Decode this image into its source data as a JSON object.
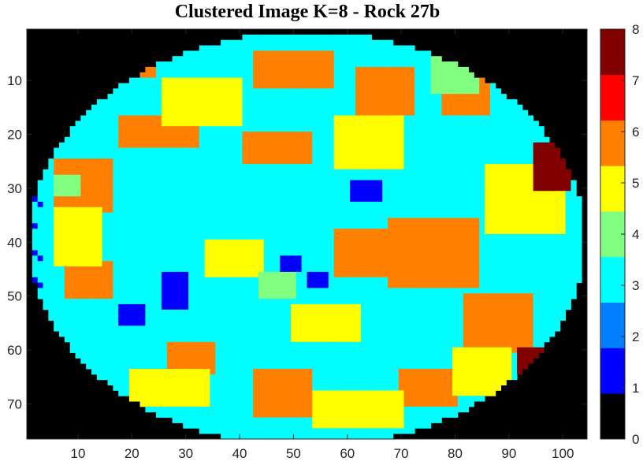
{
  "chart_data": {
    "type": "heatmap",
    "title": "Clustered Image K=8 - Rock 27b",
    "xlabel": "",
    "ylabel": "",
    "xlim": [
      0.5,
      104.5
    ],
    "ylim": [
      0.5,
      76.5
    ],
    "x_ticks": [
      10,
      20,
      30,
      40,
      50,
      60,
      70,
      80,
      90,
      100
    ],
    "y_ticks": [
      10,
      20,
      30,
      40,
      50,
      60,
      70
    ],
    "colorbar": {
      "range": [
        0,
        8
      ],
      "ticks": [
        0,
        1,
        2,
        3,
        4,
        5,
        6,
        7,
        8
      ],
      "colors": [
        "#000000",
        "#0000ff",
        "#0080ff",
        "#00ffff",
        "#80ff80",
        "#ffff00",
        "#ff8000",
        "#ff0000",
        "#800000"
      ]
    },
    "grid": false,
    "image_size": {
      "columns": 104,
      "rows": 76
    },
    "cluster_ellipse": {
      "center_col": 52.5,
      "center_row": 39.5,
      "radius_cols": 51.5,
      "radius_rows": 38.5
    },
    "regions": [
      {
        "cluster": 3,
        "note": "background of rock",
        "col": [
          4,
          103
        ],
        "row": [
          2,
          76
        ]
      },
      {
        "cluster": 6,
        "col": [
          13,
          24
        ],
        "row": [
          5,
          9
        ]
      },
      {
        "cluster": 6,
        "col": [
          18,
          32
        ],
        "row": [
          17,
          22
        ]
      },
      {
        "cluster": 6,
        "col": [
          43,
          57
        ],
        "row": [
          5,
          11
        ]
      },
      {
        "cluster": 6,
        "col": [
          62,
          72
        ],
        "row": [
          8,
          16
        ]
      },
      {
        "cluster": 6,
        "col": [
          78,
          86
        ],
        "row": [
          10,
          16
        ]
      },
      {
        "cluster": 6,
        "col": [
          6,
          16
        ],
        "row": [
          25,
          34
        ]
      },
      {
        "cluster": 6,
        "col": [
          41,
          53
        ],
        "row": [
          20,
          25
        ]
      },
      {
        "cluster": 6,
        "col": [
          68,
          84
        ],
        "row": [
          36,
          48
        ]
      },
      {
        "cluster": 6,
        "col": [
          58,
          68
        ],
        "row": [
          38,
          46
        ]
      },
      {
        "cluster": 6,
        "col": [
          82,
          94
        ],
        "row": [
          50,
          60
        ]
      },
      {
        "cluster": 6,
        "col": [
          8,
          16
        ],
        "row": [
          44,
          50
        ]
      },
      {
        "cluster": 6,
        "col": [
          27,
          35
        ],
        "row": [
          59,
          64
        ]
      },
      {
        "cluster": 6,
        "col": [
          43,
          53
        ],
        "row": [
          64,
          72
        ]
      },
      {
        "cluster": 6,
        "col": [
          70,
          80
        ],
        "row": [
          64,
          70
        ]
      },
      {
        "cluster": 5,
        "col": [
          6,
          14
        ],
        "row": [
          34,
          44
        ]
      },
      {
        "cluster": 5,
        "col": [
          26,
          40
        ],
        "row": [
          10,
          18
        ]
      },
      {
        "cluster": 5,
        "col": [
          58,
          70
        ],
        "row": [
          17,
          26
        ]
      },
      {
        "cluster": 5,
        "col": [
          86,
          100
        ],
        "row": [
          26,
          38
        ]
      },
      {
        "cluster": 5,
        "col": [
          34,
          44
        ],
        "row": [
          40,
          46
        ]
      },
      {
        "cluster": 5,
        "col": [
          20,
          34
        ],
        "row": [
          64,
          70
        ]
      },
      {
        "cluster": 5,
        "col": [
          54,
          70
        ],
        "row": [
          68,
          74
        ]
      },
      {
        "cluster": 5,
        "col": [
          80,
          90
        ],
        "row": [
          60,
          68
        ]
      },
      {
        "cluster": 5,
        "col": [
          50,
          62
        ],
        "row": [
          52,
          58
        ]
      },
      {
        "cluster": 4,
        "col": [
          76,
          84
        ],
        "row": [
          5,
          12
        ]
      },
      {
        "cluster": 4,
        "col": [
          44,
          50
        ],
        "row": [
          46,
          50
        ]
      },
      {
        "cluster": 4,
        "col": [
          6,
          10
        ],
        "row": [
          28,
          31
        ]
      },
      {
        "cluster": 1,
        "col": [
          61,
          66
        ],
        "row": [
          29,
          32
        ]
      },
      {
        "cluster": 1,
        "col": [
          26,
          30
        ],
        "row": [
          46,
          52
        ]
      },
      {
        "cluster": 1,
        "col": [
          18,
          22
        ],
        "row": [
          52,
          55
        ]
      },
      {
        "cluster": 1,
        "col": [
          48,
          51
        ],
        "row": [
          43,
          45
        ]
      },
      {
        "cluster": 1,
        "col": [
          53,
          56
        ],
        "row": [
          46,
          48
        ]
      },
      {
        "cluster": 8,
        "col": [
          92,
          100
        ],
        "row": [
          60,
          71
        ]
      },
      {
        "cluster": 8,
        "col": [
          95,
          101
        ],
        "row": [
          22,
          30
        ]
      }
    ]
  }
}
